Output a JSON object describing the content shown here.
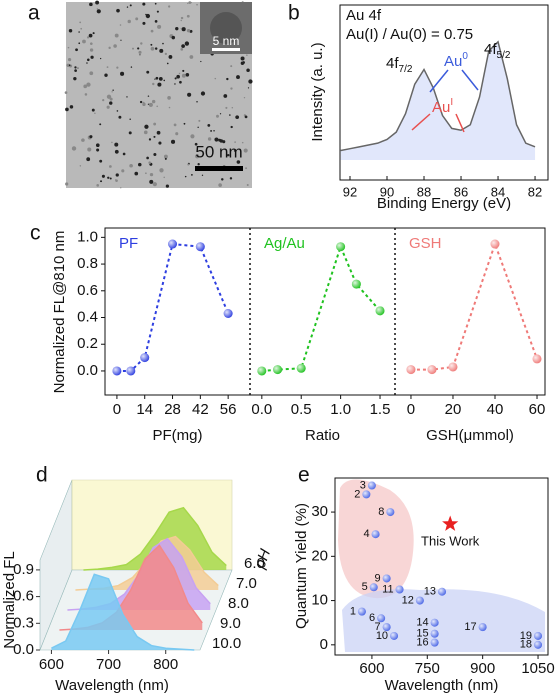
{
  "panel_labels": [
    "a",
    "b",
    "c",
    "d",
    "e"
  ],
  "image": {
    "scale_bar": "50 nm",
    "inset_scale_bar": "5 nm"
  },
  "chart_data": [
    {
      "type": "line",
      "title": "Au 4f",
      "subtitle": "Au(I) / Au(0) = 0.75",
      "x_label": "Binding Energy (eV)",
      "y_label": "Intensity (a. u.)",
      "x": [
        92.5,
        92,
        91.5,
        91,
        90.5,
        90,
        89.5,
        89,
        88.5,
        88,
        87.5,
        87,
        86.5,
        86,
        85.5,
        85,
        84.5,
        84,
        83.5,
        83,
        82.5,
        82
      ],
      "values": [
        0.16,
        0.17,
        0.18,
        0.19,
        0.2,
        0.22,
        0.26,
        0.36,
        0.52,
        0.6,
        0.5,
        0.35,
        0.28,
        0.27,
        0.3,
        0.45,
        0.7,
        0.75,
        0.55,
        0.3,
        0.2,
        0.18
      ],
      "color": "#666666",
      "xlim": [
        92.54,
        81.3
      ],
      "xticks": [
        92,
        90,
        88,
        86,
        84,
        82
      ],
      "ylim": [
        0,
        0.95
      ],
      "annotations": [
        {
          "text": "4f",
          "sub": "7/2",
          "color": "#111111"
        },
        {
          "text": "4f",
          "sub": "5/2",
          "color": "#111111"
        },
        {
          "text": "Au",
          "sup": "0",
          "color": "#3b5bdb"
        },
        {
          "text": "Au",
          "sup": "I",
          "color": "#e8504f"
        }
      ]
    },
    {
      "type": "dotline",
      "title": "PF",
      "x_label": "PF(mg)",
      "y_label": "Normalized FL@810 nm",
      "x": [
        0,
        7,
        14,
        28,
        42,
        56
      ],
      "values": [
        0,
        0,
        0.1,
        0.95,
        0.93,
        0.43
      ],
      "color": "#2d3ee0",
      "xlim": [
        -6,
        67
      ],
      "xticks": [
        0,
        14,
        28,
        42,
        56
      ],
      "ylim": [
        -0.18,
        1.07
      ],
      "yticks": [
        {
          "value": 0,
          "label": "0.0"
        },
        0.2,
        0.4,
        0.6,
        0.8,
        {
          "value": 1,
          "label": "1.0"
        }
      ]
    },
    {
      "type": "dotline",
      "title": "Ag/Au",
      "x_label": "Ratio",
      "x": [
        0,
        0.2,
        0.5,
        1.0,
        1.2,
        1.5
      ],
      "values": [
        0,
        0.01,
        0.02,
        0.93,
        0.65,
        0.45
      ],
      "color": "#1fc21f",
      "xlim": [
        -0.15,
        1.69
      ],
      "xticks": [
        {
          "value": 0,
          "label": "0.0"
        },
        0.5,
        {
          "value": 1,
          "label": "1.0"
        },
        1.5
      ]
    },
    {
      "type": "dotline",
      "title": "GSH",
      "x_label": "GSH(μmmol)",
      "x": [
        0,
        10,
        20,
        40,
        60
      ],
      "values": [
        0.01,
        0.01,
        0.03,
        0.95,
        0.09
      ],
      "color": "#ef7a78",
      "xlim": [
        -7.6,
        63.8
      ],
      "xticks": [
        0,
        20,
        40,
        60
      ]
    },
    {
      "type": "waterfall",
      "x_label": "Wavelength (nm)",
      "y_label": "Normalized FL",
      "z_label": "pH",
      "x": [
        600,
        625,
        650,
        675,
        700,
        725,
        750,
        775,
        800,
        825,
        850
      ],
      "xlim": [
        580,
        860
      ],
      "xticks": [
        600,
        700,
        800
      ],
      "ylim": [
        0,
        1
      ],
      "yticks": [
        {
          "value": 0,
          "label": "0.0"
        },
        0.3,
        0.6,
        0.9
      ],
      "series": [
        {
          "name": "6.0",
          "color": "#a6d84a",
          "values": [
            0,
            0.01,
            0.03,
            0.06,
            0.18,
            0.4,
            0.65,
            0.7,
            0.5,
            0.2,
            0.05
          ]
        },
        {
          "name": "7.0",
          "color": "#f3cc95",
          "values": [
            0,
            0.01,
            0.02,
            0.05,
            0.14,
            0.32,
            0.55,
            0.6,
            0.45,
            0.2,
            0.05
          ]
        },
        {
          "name": "8.0",
          "color": "#c7a2f2",
          "values": [
            0,
            0.01,
            0.03,
            0.07,
            0.18,
            0.4,
            0.7,
            0.8,
            0.6,
            0.25,
            0.07
          ]
        },
        {
          "name": "9.0",
          "color": "#f2898a",
          "values": [
            0,
            0.01,
            0.03,
            0.08,
            0.2,
            0.45,
            0.8,
            0.95,
            0.7,
            0.3,
            0.08
          ]
        },
        {
          "name": "10.0",
          "color": "#79c9f2",
          "values": [
            0.02,
            0.1,
            0.45,
            0.85,
            0.8,
            0.4,
            0.15,
            0.05,
            0.02,
            0.01,
            0
          ]
        }
      ]
    },
    {
      "type": "scatter",
      "x_label": "Wavelength (nm)",
      "y_label": "Quantum Yield (%)",
      "labels": [
        "1",
        "2",
        "3",
        "4",
        "5",
        "6",
        "7",
        "8",
        "9",
        "10",
        "11",
        "12",
        "13",
        "14",
        "15",
        "16",
        "17",
        "18",
        "19"
      ],
      "x": [
        573,
        585,
        600,
        610,
        605,
        625,
        640,
        650,
        640,
        660,
        675,
        730,
        790,
        770,
        770,
        770,
        900,
        1050,
        1050
      ],
      "values": [
        7.5,
        34,
        36,
        25,
        13,
        6,
        4,
        30,
        15,
        2,
        12.5,
        10,
        12,
        5,
        2.5,
        0.5,
        4,
        0,
        2
      ],
      "color": "#4a66e6",
      "xlim": [
        500,
        1077
      ],
      "xticks": [
        600,
        750,
        900,
        1050
      ],
      "ylim": [
        -2.3,
        37.7
      ],
      "yticks": [
        0,
        10,
        20,
        30
      ],
      "highlight": {
        "label": "This Work",
        "x": 812,
        "value": 27.3,
        "color": "#e82020"
      }
    }
  ]
}
